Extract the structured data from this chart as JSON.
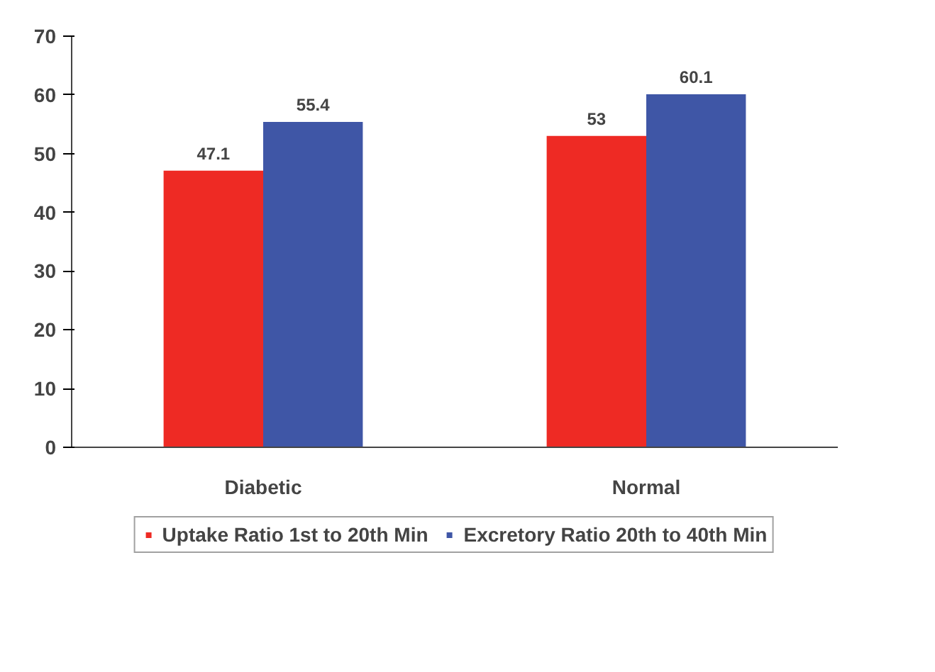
{
  "chart_data": {
    "type": "bar",
    "categories": [
      "Diabetic",
      "Normal"
    ],
    "series": [
      {
        "name": "Uptake Ratio 1st to 20th Min",
        "color": "#ee2a24",
        "values": [
          47.1,
          53
        ]
      },
      {
        "name": "Excretory Ratio 20th to 40th Min",
        "color": "#3f56a6",
        "values": [
          55.4,
          60.1
        ]
      }
    ],
    "ylim": [
      0,
      70
    ],
    "yticks": [
      0,
      10,
      20,
      30,
      40,
      50,
      60,
      70
    ],
    "grid": false,
    "legend": "bottom",
    "data_labels": true
  }
}
